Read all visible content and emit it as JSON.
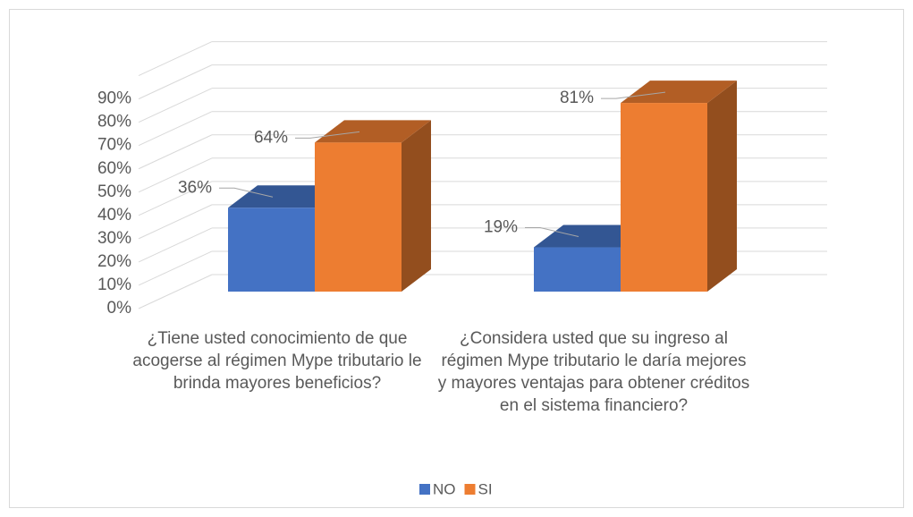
{
  "chart_data": {
    "type": "bar3d",
    "categories": [
      "¿Tiene usted conocimiento de que acogerse al régimen Mype tributario le brinda mayores beneficios?",
      "¿Considera usted que su ingreso al régimen Mype tributario le daría mejores y mayores ventajas para obtener créditos en el sistema financiero?"
    ],
    "series": [
      {
        "name": "NO",
        "color": "#4472c4",
        "values": [
          36,
          19
        ],
        "value_labels": [
          "36%",
          "19%"
        ]
      },
      {
        "name": "SI",
        "color": "#ed7d31",
        "values": [
          64,
          81
        ],
        "value_labels": [
          "64%",
          "81%"
        ]
      }
    ],
    "ylim": [
      0,
      100
    ],
    "yticks": [
      {
        "value": 0,
        "label": "0%"
      },
      {
        "value": 10,
        "label": "10%"
      },
      {
        "value": 20,
        "label": "20%"
      },
      {
        "value": 30,
        "label": "30%"
      },
      {
        "value": 40,
        "label": "40%"
      },
      {
        "value": 50,
        "label": "50%"
      },
      {
        "value": 60,
        "label": "60%"
      },
      {
        "value": 70,
        "label": "70%"
      },
      {
        "value": 80,
        "label": "80%"
      },
      {
        "value": 90,
        "label": "90%"
      }
    ],
    "grid": true,
    "legend": "bottom"
  }
}
